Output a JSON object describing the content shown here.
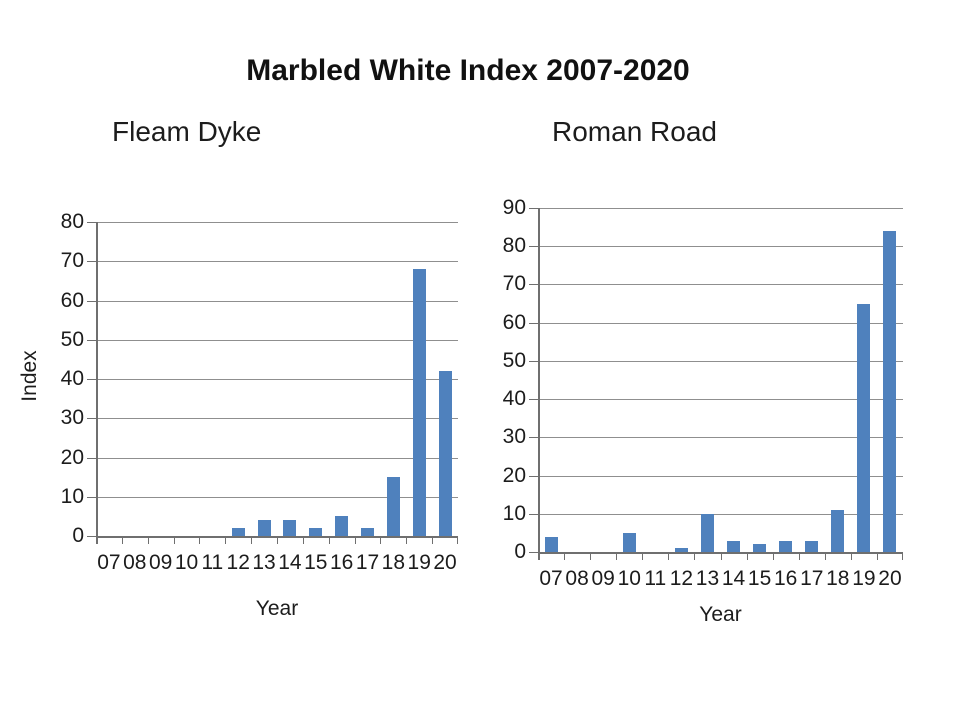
{
  "slide": {
    "title": "Marbled White Index 2007-2020"
  },
  "chart_data": [
    {
      "type": "bar",
      "title": "Fleam Dyke",
      "categories": [
        "07",
        "08",
        "09",
        "10",
        "11",
        "12",
        "13",
        "14",
        "15",
        "16",
        "17",
        "18",
        "19",
        "20"
      ],
      "values": [
        0,
        0,
        0,
        0,
        0,
        2,
        4,
        4,
        2,
        5,
        2,
        15,
        68,
        42
      ],
      "xlabel": "Year",
      "ylabel": "Index",
      "ylim": [
        0,
        80
      ],
      "yticks": [
        0,
        10,
        20,
        30,
        40,
        50,
        60,
        70,
        80
      ],
      "grid": true,
      "legend": "none",
      "bar_color": "#4F81BD"
    },
    {
      "type": "bar",
      "title": "Roman Road",
      "categories": [
        "07",
        "08",
        "09",
        "10",
        "11",
        "12",
        "13",
        "14",
        "15",
        "16",
        "17",
        "18",
        "19",
        "20"
      ],
      "values": [
        4,
        0,
        0,
        5,
        0,
        1,
        10,
        3,
        2,
        3,
        3,
        11,
        65,
        84
      ],
      "xlabel": "Year",
      "ylabel": "",
      "ylim": [
        0,
        90
      ],
      "yticks": [
        0,
        10,
        20,
        30,
        40,
        50,
        60,
        70,
        80,
        90
      ],
      "grid": true,
      "legend": "none",
      "bar_color": "#4F81BD"
    }
  ]
}
